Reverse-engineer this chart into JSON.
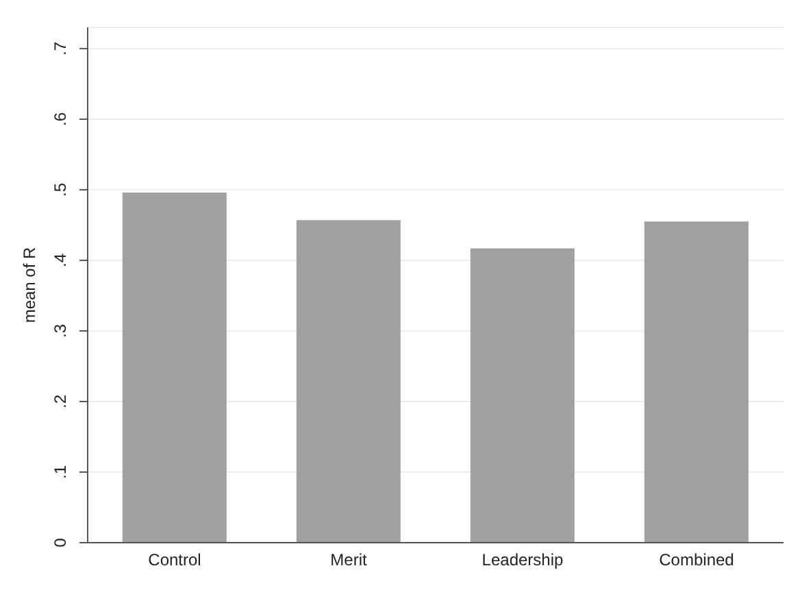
{
  "chart_data": {
    "type": "bar",
    "ylabel": "mean of R",
    "categories": [
      "Control",
      "Merit",
      "Leadership",
      "Combined"
    ],
    "values": [
      0.496,
      0.457,
      0.417,
      0.455
    ],
    "color": "#a0a0a0",
    "ylim": [
      0,
      0.73
    ],
    "yticks": [
      0,
      {
        "value": 0.1,
        "label": ".1"
      },
      {
        "value": 0.2,
        "label": ".2"
      },
      {
        "value": 0.3,
        "label": ".3"
      },
      {
        "value": 0.4,
        "label": ".4"
      },
      {
        "value": 0.5,
        "label": ".5"
      },
      {
        "value": 0.6,
        "label": ".6"
      },
      {
        "value": 0.7,
        "label": ".7"
      }
    ],
    "grid": "y"
  }
}
